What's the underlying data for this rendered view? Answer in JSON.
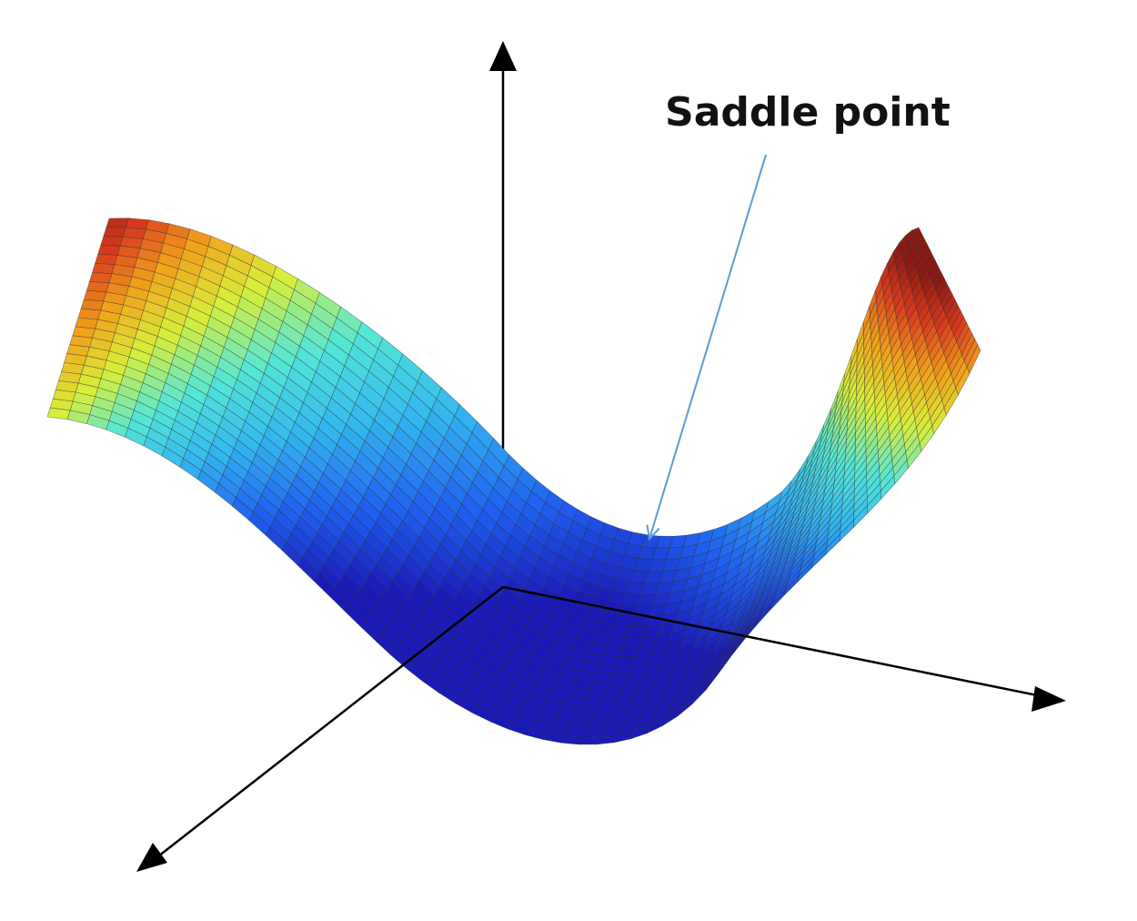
{
  "annotation": {
    "label": "Saddle point"
  },
  "colors": {
    "axis": "#000000",
    "pointer": "#5b9bd5",
    "mesh": "#2a2a2a",
    "colormap": [
      "#1a1ab8",
      "#1f5ff0",
      "#33b6f0",
      "#55e7d6",
      "#d8ef3a",
      "#f2a21c",
      "#d8391e",
      "#8a1a12"
    ]
  },
  "surface": {
    "type": "saddle-mesh",
    "colormap_name": "jet"
  }
}
